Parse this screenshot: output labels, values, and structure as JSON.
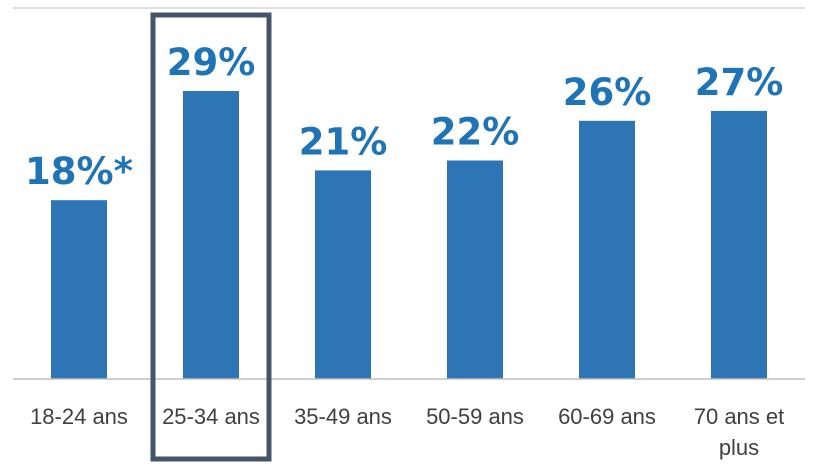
{
  "chart_data": {
    "type": "bar",
    "categories": [
      "18-24 ans",
      "25-34 ans",
      "35-49 ans",
      "50-59 ans",
      "60-69 ans",
      "70 ans et plus"
    ],
    "category_lines": [
      [
        "18-24 ans"
      ],
      [
        "25-34 ans"
      ],
      [
        "35-49 ans"
      ],
      [
        "50-59 ans"
      ],
      [
        "60-69 ans"
      ],
      [
        "70 ans et",
        "plus"
      ]
    ],
    "values": [
      18,
      29,
      21,
      22,
      26,
      27
    ],
    "data_labels": [
      "18%*",
      "29%",
      "21%",
      "22%",
      "26%",
      "27%"
    ],
    "unit": "%",
    "highlighted_category": "25-34 ans",
    "title": "",
    "xlabel": "",
    "ylabel": "",
    "ylim": [
      0,
      29
    ],
    "grid": false,
    "legend": "none",
    "colors": {
      "bar": "#2e75b6",
      "label": "#1f73b7",
      "category_text": "#404040",
      "axis": "#bfbfbf",
      "highlight_box": "#44546a"
    }
  }
}
